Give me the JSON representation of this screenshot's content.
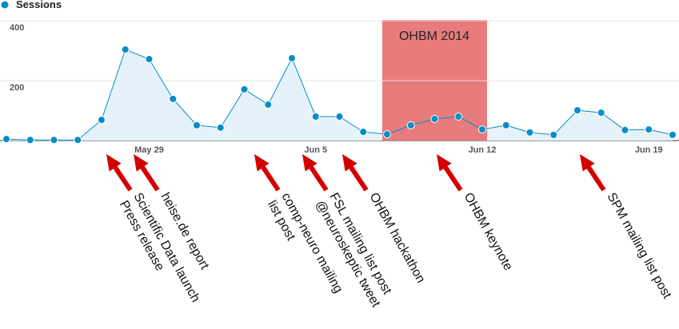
{
  "chart_data": {
    "type": "line",
    "categories": [
      null,
      null,
      null,
      null,
      null,
      null,
      "May 29",
      null,
      null,
      null,
      null,
      null,
      null,
      "Jun 5",
      null,
      null,
      null,
      null,
      null,
      null,
      "Jun 12",
      null,
      null,
      null,
      null,
      null,
      null,
      "Jun 19",
      null
    ],
    "series": [
      {
        "name": "Sessions",
        "color": "#058dc7",
        "values": [
          5,
          2,
          2,
          2,
          69,
          304,
          272,
          139,
          51,
          43,
          171,
          120,
          275,
          80,
          80,
          29,
          21,
          51,
          72,
          80,
          37,
          51,
          27,
          19,
          101,
          93,
          35,
          37,
          19
        ]
      }
    ],
    "ylim": [
      0,
      400
    ],
    "yticks": [
      200,
      400
    ],
    "grid": true,
    "highlight": {
      "label": "OHBM 2014",
      "color": "#e87c7c"
    },
    "annotations": [
      {
        "lines": [
          "Scientific Data launch",
          "Press release"
        ]
      },
      {
        "lines": [
          "heise.de report"
        ]
      },
      {
        "lines": [
          "comp-neuro mailing",
          "list post"
        ]
      },
      {
        "lines": [
          "FSL mailing list post",
          "@neuroskeptic tweet"
        ]
      },
      {
        "lines": [
          "OHBM hackathon"
        ]
      },
      {
        "lines": [
          "OHBM keynote"
        ]
      },
      {
        "lines": [
          "SPM mailing list post"
        ]
      }
    ],
    "annotation_color": "#d40000"
  }
}
